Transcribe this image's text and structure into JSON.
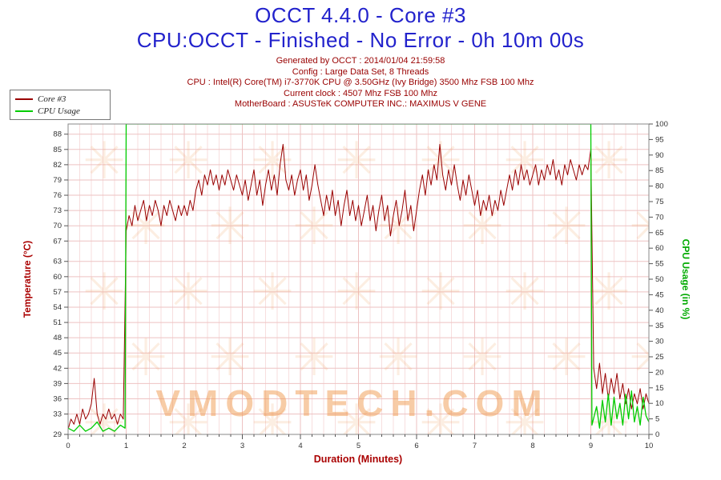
{
  "header": {
    "title": "OCCT 4.4.0 - Core #3",
    "subtitle": "CPU:OCCT - Finished - No Error - 0h 10m 00s",
    "info_lines": [
      "Generated by OCCT : 2014/01/04 21:59:58",
      "Config : Large Data Set, 8 Threads",
      "CPU : Intel(R) Core(TM) i7-3770K CPU @ 3.50GHz (Ivy Bridge) 3500 Mhz FSB 100 Mhz",
      "Current clock : 4507 Mhz FSB 100 Mhz",
      "MotherBoard : ASUSTeK COMPUTER INC.: MAXIMUS V GENE"
    ]
  },
  "legend": {
    "items": [
      {
        "label": "Core #3",
        "color": "#990000"
      },
      {
        "label": "CPU Usage",
        "color": "#00cc00"
      }
    ]
  },
  "watermark": "VMODTECH.COM",
  "colors": {
    "title_blue": "#2222cc",
    "info_maroon": "#990000",
    "temp_line": "#990000",
    "cpu_line": "#00cc00",
    "grid_pink_major": "#eec2c2",
    "grid_pink_minor": "#f7dede",
    "watermark_orange": "#f09a50",
    "plot_border": "#888888"
  },
  "chart_data": {
    "type": "line",
    "title": "OCCT 4.4.0 - Core #3",
    "xlabel": "Duration (Minutes)",
    "ylabel_left": "Temperature (°C)",
    "ylabel_right": "CPU Usage (in %)",
    "xlim": [
      0,
      10
    ],
    "x_major_step": 1,
    "x_minor_step": 0.2,
    "x_ticks": [
      0,
      1,
      2,
      3,
      4,
      5,
      6,
      7,
      8,
      9,
      10
    ],
    "ylim_left": [
      29,
      90
    ],
    "left_ticks": [
      88,
      85,
      82,
      79,
      76,
      73,
      70,
      67,
      63,
      60,
      57,
      54,
      51,
      48,
      45,
      42,
      39,
      36,
      33,
      29
    ],
    "ylim_right": [
      0,
      100
    ],
    "right_ticks": [
      100,
      95,
      90,
      85,
      80,
      75,
      70,
      65,
      60,
      55,
      50,
      45,
      40,
      35,
      30,
      25,
      20,
      15,
      10,
      5,
      0
    ],
    "grid": true,
    "legend_position": "top-left",
    "series": [
      {
        "name": "Core #3",
        "axis": "left",
        "color": "#990000",
        "points": [
          [
            0,
            30
          ],
          [
            0.05,
            32
          ],
          [
            0.1,
            31
          ],
          [
            0.15,
            33
          ],
          [
            0.2,
            31
          ],
          [
            0.25,
            34
          ],
          [
            0.3,
            32
          ],
          [
            0.35,
            33
          ],
          [
            0.4,
            35
          ],
          [
            0.45,
            40
          ],
          [
            0.5,
            33
          ],
          [
            0.55,
            31
          ],
          [
            0.6,
            33
          ],
          [
            0.65,
            32
          ],
          [
            0.7,
            34
          ],
          [
            0.75,
            32
          ],
          [
            0.8,
            33
          ],
          [
            0.85,
            31
          ],
          [
            0.9,
            33
          ],
          [
            0.95,
            32
          ],
          [
            1,
            69
          ],
          [
            1.05,
            72
          ],
          [
            1.1,
            70
          ],
          [
            1.15,
            74
          ],
          [
            1.2,
            71
          ],
          [
            1.25,
            73
          ],
          [
            1.3,
            75
          ],
          [
            1.35,
            71
          ],
          [
            1.4,
            74
          ],
          [
            1.45,
            72
          ],
          [
            1.5,
            75
          ],
          [
            1.55,
            73
          ],
          [
            1.6,
            70
          ],
          [
            1.65,
            74
          ],
          [
            1.7,
            72
          ],
          [
            1.75,
            75
          ],
          [
            1.8,
            73
          ],
          [
            1.85,
            71
          ],
          [
            1.9,
            74
          ],
          [
            1.95,
            72
          ],
          [
            2,
            74
          ],
          [
            2.05,
            72
          ],
          [
            2.1,
            75
          ],
          [
            2.15,
            73
          ],
          [
            2.2,
            77
          ],
          [
            2.25,
            79
          ],
          [
            2.3,
            76
          ],
          [
            2.35,
            80
          ],
          [
            2.4,
            78
          ],
          [
            2.45,
            81
          ],
          [
            2.5,
            78
          ],
          [
            2.55,
            80
          ],
          [
            2.6,
            77
          ],
          [
            2.65,
            80
          ],
          [
            2.7,
            78
          ],
          [
            2.75,
            81
          ],
          [
            2.8,
            79
          ],
          [
            2.85,
            77
          ],
          [
            2.9,
            80
          ],
          [
            2.95,
            78
          ],
          [
            3,
            76
          ],
          [
            3.05,
            79
          ],
          [
            3.1,
            75
          ],
          [
            3.15,
            78
          ],
          [
            3.2,
            81
          ],
          [
            3.25,
            76
          ],
          [
            3.3,
            79
          ],
          [
            3.35,
            74
          ],
          [
            3.4,
            78
          ],
          [
            3.45,
            81
          ],
          [
            3.5,
            77
          ],
          [
            3.55,
            80
          ],
          [
            3.6,
            76
          ],
          [
            3.65,
            82
          ],
          [
            3.7,
            86
          ],
          [
            3.75,
            79
          ],
          [
            3.8,
            77
          ],
          [
            3.85,
            80
          ],
          [
            3.9,
            76
          ],
          [
            3.95,
            79
          ],
          [
            4,
            81
          ],
          [
            4.05,
            77
          ],
          [
            4.1,
            80
          ],
          [
            4.15,
            75
          ],
          [
            4.2,
            78
          ],
          [
            4.25,
            82
          ],
          [
            4.3,
            78
          ],
          [
            4.35,
            75
          ],
          [
            4.4,
            72
          ],
          [
            4.45,
            76
          ],
          [
            4.5,
            73
          ],
          [
            4.55,
            77
          ],
          [
            4.6,
            72
          ],
          [
            4.65,
            75
          ],
          [
            4.7,
            70
          ],
          [
            4.75,
            74
          ],
          [
            4.8,
            77
          ],
          [
            4.85,
            72
          ],
          [
            4.9,
            75
          ],
          [
            4.95,
            71
          ],
          [
            5,
            74
          ],
          [
            5.05,
            70
          ],
          [
            5.1,
            73
          ],
          [
            5.15,
            76
          ],
          [
            5.2,
            71
          ],
          [
            5.25,
            74
          ],
          [
            5.3,
            69
          ],
          [
            5.35,
            73
          ],
          [
            5.4,
            76
          ],
          [
            5.45,
            71
          ],
          [
            5.5,
            74
          ],
          [
            5.55,
            68
          ],
          [
            5.6,
            72
          ],
          [
            5.65,
            75
          ],
          [
            5.7,
            70
          ],
          [
            5.75,
            73
          ],
          [
            5.8,
            77
          ],
          [
            5.85,
            71
          ],
          [
            5.9,
            74
          ],
          [
            5.95,
            69
          ],
          [
            6,
            73
          ],
          [
            6.05,
            77
          ],
          [
            6.1,
            80
          ],
          [
            6.15,
            76
          ],
          [
            6.2,
            81
          ],
          [
            6.25,
            78
          ],
          [
            6.3,
            82
          ],
          [
            6.35,
            79
          ],
          [
            6.4,
            86
          ],
          [
            6.45,
            80
          ],
          [
            6.5,
            77
          ],
          [
            6.55,
            81
          ],
          [
            6.6,
            78
          ],
          [
            6.65,
            82
          ],
          [
            6.7,
            78
          ],
          [
            6.75,
            75
          ],
          [
            6.8,
            79
          ],
          [
            6.85,
            76
          ],
          [
            6.9,
            80
          ],
          [
            6.95,
            77
          ],
          [
            7,
            74
          ],
          [
            7.05,
            77
          ],
          [
            7.1,
            72
          ],
          [
            7.15,
            75
          ],
          [
            7.2,
            73
          ],
          [
            7.25,
            76
          ],
          [
            7.3,
            72
          ],
          [
            7.35,
            75
          ],
          [
            7.4,
            73
          ],
          [
            7.45,
            77
          ],
          [
            7.5,
            74
          ],
          [
            7.55,
            77
          ],
          [
            7.6,
            80
          ],
          [
            7.65,
            77
          ],
          [
            7.7,
            81
          ],
          [
            7.75,
            78
          ],
          [
            7.8,
            82
          ],
          [
            7.85,
            79
          ],
          [
            7.9,
            81
          ],
          [
            7.95,
            78
          ],
          [
            8,
            80
          ],
          [
            8.05,
            82
          ],
          [
            8.1,
            78
          ],
          [
            8.15,
            81
          ],
          [
            8.2,
            79
          ],
          [
            8.25,
            82
          ],
          [
            8.3,
            80
          ],
          [
            8.35,
            83
          ],
          [
            8.4,
            79
          ],
          [
            8.45,
            81
          ],
          [
            8.5,
            78
          ],
          [
            8.55,
            82
          ],
          [
            8.6,
            80
          ],
          [
            8.65,
            83
          ],
          [
            8.7,
            81
          ],
          [
            8.75,
            79
          ],
          [
            8.8,
            82
          ],
          [
            8.85,
            80
          ],
          [
            8.9,
            82
          ],
          [
            8.95,
            81
          ],
          [
            9,
            85
          ],
          [
            9.05,
            42
          ],
          [
            9.1,
            38
          ],
          [
            9.15,
            43
          ],
          [
            9.2,
            37
          ],
          [
            9.25,
            41
          ],
          [
            9.3,
            36
          ],
          [
            9.35,
            40
          ],
          [
            9.4,
            37
          ],
          [
            9.45,
            41
          ],
          [
            9.5,
            36
          ],
          [
            9.55,
            39
          ],
          [
            9.6,
            35
          ],
          [
            9.65,
            38
          ],
          [
            9.7,
            34
          ],
          [
            9.75,
            37
          ],
          [
            9.8,
            35
          ],
          [
            9.85,
            38
          ],
          [
            9.9,
            34
          ],
          [
            9.95,
            37
          ],
          [
            10,
            35
          ]
        ]
      },
      {
        "name": "CPU Usage",
        "axis": "right",
        "color": "#00cc00",
        "points": [
          [
            0,
            2
          ],
          [
            0.1,
            1
          ],
          [
            0.2,
            3
          ],
          [
            0.3,
            1
          ],
          [
            0.4,
            2
          ],
          [
            0.5,
            4
          ],
          [
            0.6,
            1
          ],
          [
            0.7,
            2
          ],
          [
            0.8,
            1
          ],
          [
            0.9,
            3
          ],
          [
            0.98,
            2
          ],
          [
            1,
            100
          ],
          [
            9,
            100
          ],
          [
            9.02,
            3
          ],
          [
            9.1,
            9
          ],
          [
            9.15,
            2
          ],
          [
            9.2,
            11
          ],
          [
            9.25,
            4
          ],
          [
            9.3,
            13
          ],
          [
            9.35,
            3
          ],
          [
            9.4,
            12
          ],
          [
            9.45,
            5
          ],
          [
            9.5,
            10
          ],
          [
            9.55,
            3
          ],
          [
            9.6,
            13
          ],
          [
            9.65,
            5
          ],
          [
            9.7,
            14
          ],
          [
            9.75,
            4
          ],
          [
            9.8,
            9
          ],
          [
            9.85,
            3
          ],
          [
            9.9,
            12
          ],
          [
            9.95,
            6
          ],
          [
            10,
            4
          ]
        ]
      }
    ]
  }
}
